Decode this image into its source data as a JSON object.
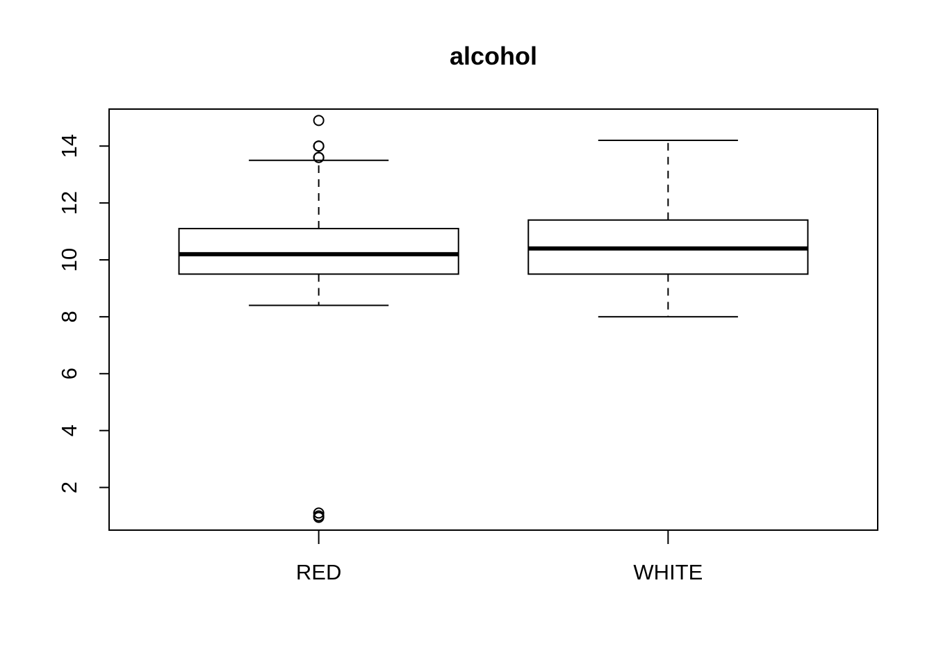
{
  "chart_data": {
    "type": "boxplot",
    "title": "alcohol",
    "xlabel": "",
    "ylabel": "",
    "categories": [
      "RED",
      "WHITE"
    ],
    "ylim": [
      0.5,
      15.3
    ],
    "yticks": [
      2,
      4,
      6,
      8,
      10,
      12,
      14
    ],
    "grid": false,
    "legend": "none",
    "colors": {
      "stroke": "#000000",
      "background": "#ffffff"
    },
    "boxes": [
      {
        "category": "RED",
        "whisker_low": 8.4,
        "q1": 9.5,
        "median": 10.2,
        "q3": 11.1,
        "whisker_high": 13.5,
        "outliers": [
          14.9,
          14.0,
          14.0,
          14.0,
          13.6,
          13.6,
          13.6,
          1.1,
          1.0,
          0.95
        ]
      },
      {
        "category": "WHITE",
        "whisker_low": 8.0,
        "q1": 9.5,
        "median": 10.4,
        "q3": 11.4,
        "whisker_high": 14.2,
        "outliers": []
      }
    ]
  }
}
